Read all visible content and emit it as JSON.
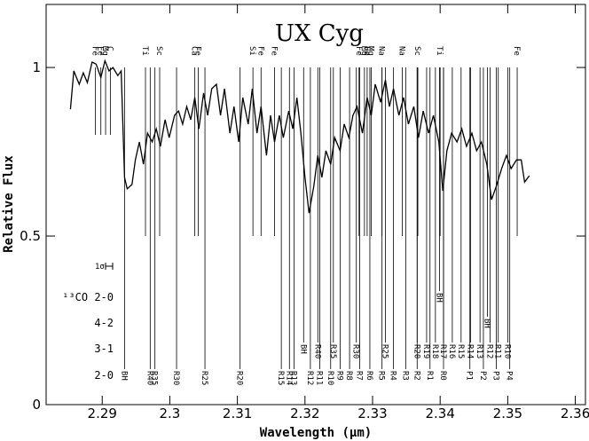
{
  "chart_data": {
    "type": "line",
    "title": "UX Cyg",
    "xlabel": "Wavelength (μm)",
    "ylabel": "Relative Flux",
    "xlim": [
      2.2817,
      2.3615
    ],
    "ylim": [
      0,
      1.187
    ],
    "xticks": [
      2.29,
      2.3,
      2.31,
      2.32,
      2.33,
      2.34,
      2.35,
      2.36
    ],
    "yticks": [
      0,
      0.5,
      1
    ],
    "x": [
      2.2853,
      2.2858,
      2.2866,
      2.2872,
      2.2878,
      2.2885,
      2.2891,
      2.2898,
      2.2904,
      2.291,
      2.2916,
      2.2923,
      2.2928,
      2.2933,
      2.2937,
      2.2944,
      2.2949,
      2.2955,
      2.2961,
      2.2967,
      2.2974,
      2.298,
      2.2986,
      2.2993,
      2.2999,
      2.3007,
      2.3013,
      2.3019,
      2.3025,
      2.3031,
      2.3037,
      2.3043,
      2.305,
      2.3056,
      2.3062,
      2.3069,
      2.3075,
      2.3081,
      2.3089,
      2.3095,
      2.3102,
      2.3108,
      2.3116,
      2.3122,
      2.3129,
      2.3135,
      2.3143,
      2.3149,
      2.3155,
      2.3162,
      2.3168,
      2.3176,
      2.3182,
      2.3188,
      2.3194,
      2.32,
      2.3206,
      2.3213,
      2.3219,
      2.3225,
      2.3231,
      2.3238,
      2.3244,
      2.3252,
      2.3258,
      2.3265,
      2.3271,
      2.3277,
      2.3285,
      2.3292,
      2.3298,
      2.3304,
      2.3312,
      2.3319,
      2.3325,
      2.3331,
      2.3339,
      2.3346,
      2.3353,
      2.3361,
      2.3368,
      2.3375,
      2.3383,
      2.339,
      2.3398,
      2.3404,
      2.341,
      2.3417,
      2.3425,
      2.3432,
      2.3439,
      2.3447,
      2.3454,
      2.3461,
      2.3469,
      2.3476,
      2.3483,
      2.3491,
      2.3498,
      2.3505,
      2.3513,
      2.352,
      2.3525,
      2.3532
    ],
    "series": [
      {
        "color": "#000000",
        "values": [
          0.876,
          0.99,
          0.95,
          0.984,
          0.955,
          1.016,
          1.01,
          0.97,
          1.02,
          0.99,
          1.0,
          0.976,
          0.99,
          0.674,
          0.64,
          0.653,
          0.726,
          0.779,
          0.713,
          0.805,
          0.779,
          0.818,
          0.766,
          0.845,
          0.792,
          0.858,
          0.871,
          0.832,
          0.884,
          0.845,
          0.911,
          0.818,
          0.924,
          0.858,
          0.937,
          0.95,
          0.858,
          0.937,
          0.805,
          0.884,
          0.779,
          0.911,
          0.832,
          0.937,
          0.805,
          0.884,
          0.739,
          0.858,
          0.779,
          0.858,
          0.792,
          0.871,
          0.818,
          0.911,
          0.805,
          0.674,
          0.568,
          0.647,
          0.739,
          0.674,
          0.753,
          0.713,
          0.792,
          0.753,
          0.832,
          0.792,
          0.858,
          0.884,
          0.805,
          0.911,
          0.858,
          0.95,
          0.897,
          0.963,
          0.884,
          0.937,
          0.858,
          0.911,
          0.832,
          0.884,
          0.792,
          0.871,
          0.805,
          0.858,
          0.779,
          0.634,
          0.753,
          0.805,
          0.779,
          0.818,
          0.766,
          0.805,
          0.753,
          0.779,
          0.713,
          0.608,
          0.647,
          0.7,
          0.739,
          0.7,
          0.726,
          0.726,
          0.66,
          0.679
        ]
      }
    ],
    "atomic_lines": [
      {
        "label": "Fe",
        "x": 2.289,
        "ymin": 0.8
      },
      {
        "label": "Fe",
        "x": 2.2898,
        "ymin": 0.8
      },
      {
        "label": "Mg",
        "x": 2.2905,
        "ymin": 0.8
      },
      {
        "label": "C",
        "x": 2.2912,
        "ymin": 0.8
      },
      {
        "label": "Ti",
        "x": 2.2964,
        "ymin": 0.5
      },
      {
        "label": "Sc",
        "x": 2.2985,
        "ymin": 0.5
      },
      {
        "label": "Ca",
        "x": 2.3037,
        "ymin": 0.5
      },
      {
        "label": "Fe",
        "x": 2.3042,
        "ymin": 0.5
      },
      {
        "label": "Si",
        "x": 2.3123,
        "ymin": 0.5
      },
      {
        "label": "Fe",
        "x": 2.3135,
        "ymin": 0.5
      },
      {
        "label": "Fe",
        "x": 2.3155,
        "ymin": 0.5
      },
      {
        "label": "Fe",
        "x": 2.328,
        "ymin": 0.5
      },
      {
        "label": "Mg",
        "x": 2.3288,
        "ymin": 0.5
      },
      {
        "label": "Fe",
        "x": 2.3292,
        "ymin": 0.5
      },
      {
        "label": "Mg",
        "x": 2.3298,
        "ymin": 0.5
      },
      {
        "label": "Na",
        "x": 2.3314,
        "ymin": 0.5
      },
      {
        "label": "Na",
        "x": 2.3344,
        "ymin": 0.5
      },
      {
        "label": "Sc",
        "x": 2.3367,
        "ymin": 0.5
      },
      {
        "label": "Ti",
        "x": 2.34,
        "ymin": 0.5
      },
      {
        "label": "Fe",
        "x": 2.3514,
        "ymin": 0.5
      }
    ],
    "co_bands": [
      {
        "name": "2-0",
        "lines": [
          {
            "label": "BH",
            "x": 2.2933
          },
          {
            "label": "R40",
            "x": 2.2971
          },
          {
            "label": "R35",
            "x": 2.2978
          },
          {
            "label": "R30",
            "x": 2.301
          },
          {
            "label": "R25",
            "x": 2.3052
          },
          {
            "label": "R20",
            "x": 2.3104
          },
          {
            "label": "R15",
            "x": 2.3165
          },
          {
            "label": "R14",
            "x": 2.3177
          },
          {
            "label": "R13",
            "x": 2.3184
          },
          {
            "label": "R12",
            "x": 2.3208
          },
          {
            "label": "R11",
            "x": 2.3222
          },
          {
            "label": "R10",
            "x": 2.3238
          },
          {
            "label": "R9",
            "x": 2.3252
          },
          {
            "label": "R8",
            "x": 2.3266
          },
          {
            "label": "R7",
            "x": 2.3281
          },
          {
            "label": "R6",
            "x": 2.3296
          },
          {
            "label": "R5",
            "x": 2.3314
          },
          {
            "label": "R4",
            "x": 2.3331
          },
          {
            "label": "R3",
            "x": 2.3349
          },
          {
            "label": "R2",
            "x": 2.3366
          },
          {
            "label": "R1",
            "x": 2.3385
          },
          {
            "label": "R0",
            "x": 2.3405
          },
          {
            "label": "P1",
            "x": 2.3444
          },
          {
            "label": "P2",
            "x": 2.3464
          },
          {
            "label": "P3",
            "x": 2.3483
          },
          {
            "label": "P4",
            "x": 2.3503
          }
        ]
      },
      {
        "name": "3-1",
        "lines": [
          {
            "label": "BH",
            "x": 2.3198
          },
          {
            "label": "R40",
            "x": 2.3219
          },
          {
            "label": "R35",
            "x": 2.3242
          },
          {
            "label": "R30",
            "x": 2.3276
          },
          {
            "label": "R25",
            "x": 2.3319
          },
          {
            "label": "R20",
            "x": 2.3366
          },
          {
            "label": "R19",
            "x": 2.338
          },
          {
            "label": "R18",
            "x": 2.3393
          },
          {
            "label": "R17",
            "x": 2.3405
          },
          {
            "label": "R16",
            "x": 2.3418
          },
          {
            "label": "R15",
            "x": 2.3431
          },
          {
            "label": "R14",
            "x": 2.3445
          },
          {
            "label": "R13",
            "x": 2.3459
          },
          {
            "label": "R12",
            "x": 2.3474
          },
          {
            "label": "R11",
            "x": 2.3486
          },
          {
            "label": "R10",
            "x": 2.35
          }
        ]
      },
      {
        "name": "4-2",
        "lines": [
          {
            "label": "BH",
            "x": 2.347
          }
        ]
      },
      {
        "name": "¹³CO 2-0",
        "lines": [
          {
            "label": "BH",
            "x": 2.3399
          }
        ]
      }
    ],
    "error_label": "1σ"
  }
}
